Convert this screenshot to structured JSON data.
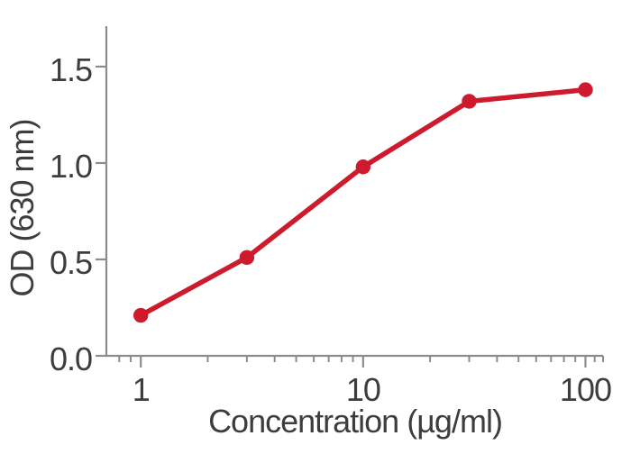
{
  "chart_data": {
    "type": "line",
    "title": "",
    "xlabel": "Concentration (µg/ml)",
    "ylabel": "OD (630 nm)",
    "x_scale": "log",
    "y_scale": "linear",
    "x": [
      1,
      3,
      10,
      30,
      100
    ],
    "series": [
      {
        "values": [
          0.21,
          0.51,
          0.98,
          1.32,
          1.38
        ]
      }
    ],
    "xlim": [
      0.7,
      120
    ],
    "ylim": [
      0,
      1.71
    ],
    "x_major_ticks": [
      1,
      10,
      100
    ],
    "x_major_tick_labels": [
      "1",
      "10",
      "100"
    ],
    "x_minor_ticks": [
      0.8,
      0.9,
      2,
      3,
      4,
      5,
      6,
      7,
      8,
      9,
      20,
      30,
      40,
      50,
      60,
      70,
      80,
      90,
      110,
      120
    ],
    "y_ticks": [
      0,
      0.5,
      1,
      1.5
    ],
    "y_tick_labels": [
      "0.0",
      "0.5",
      "1.0",
      "1.5"
    ],
    "grid": false,
    "legend": "none",
    "marker": "circle",
    "colors": {
      "line": "#CD1A2D",
      "marker": "#CD1A2D",
      "axis": "#8C8C8C",
      "text": "#3D3D3C",
      "background": "#FFFFFF"
    }
  }
}
